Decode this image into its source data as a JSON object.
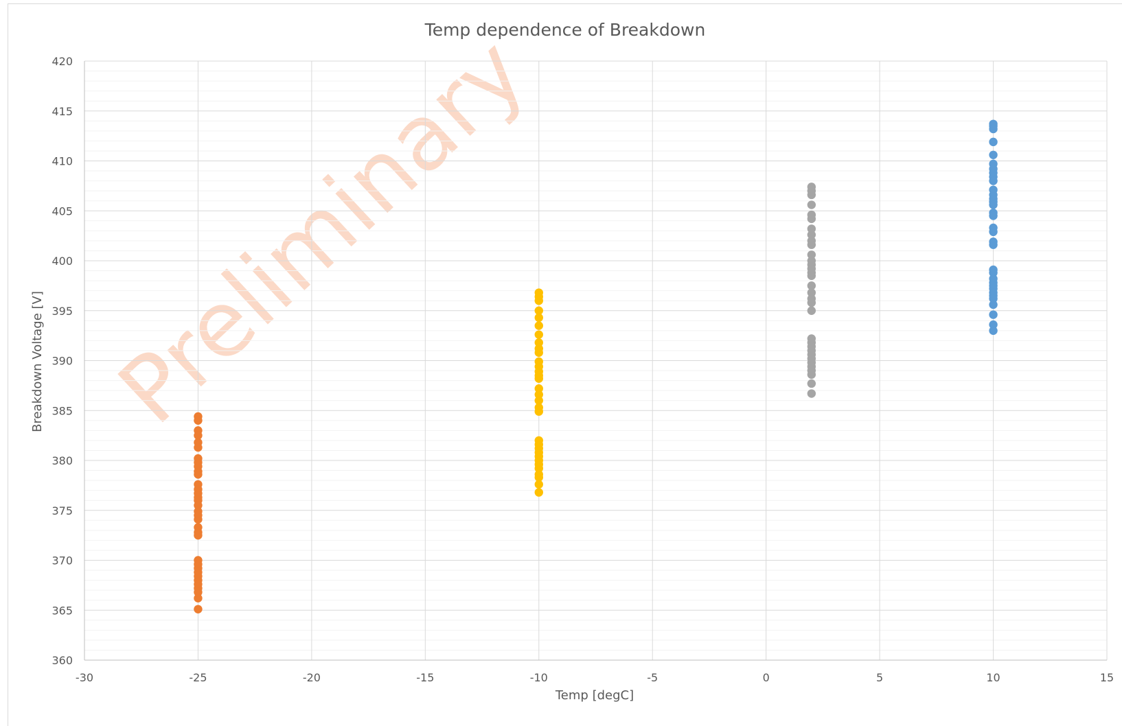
{
  "chart_data": {
    "type": "scatter",
    "title": "Temp dependence  of Breakdown",
    "xlabel": "Temp [degC]",
    "ylabel": "Breakdown Voltage [V]",
    "xlim": [
      -30,
      15
    ],
    "ylim": [
      360,
      420
    ],
    "x_ticks": [
      -30,
      -25,
      -20,
      -15,
      -10,
      -5,
      0,
      5,
      10,
      15
    ],
    "y_ticks": [
      360,
      365,
      370,
      375,
      380,
      385,
      390,
      395,
      400,
      405,
      410,
      415,
      420
    ],
    "x_tick_labels": [
      "-30",
      "-25",
      "-20",
      "-15",
      "-10",
      "-5",
      "0",
      "5",
      "10",
      "15"
    ],
    "y_tick_labels": [
      "360",
      "365",
      "370",
      "375",
      "380",
      "385",
      "390",
      "395",
      "400",
      "405",
      "410",
      "415",
      "420"
    ],
    "grid": {
      "major": true,
      "minor_y": true
    },
    "legend": "none",
    "watermark": {
      "text": "Preliminary",
      "color": "#fbd9c7"
    },
    "series": [
      {
        "color": "#ed7d31",
        "x": -25,
        "y": [
          384.4,
          384.0,
          383.0,
          382.5,
          381.8,
          381.3,
          380.2,
          379.8,
          379.4,
          378.9,
          378.6,
          377.6,
          377.1,
          376.7,
          376.3,
          376.0,
          375.5,
          374.9,
          374.5,
          374.1,
          373.3,
          372.8,
          372.5,
          370.0,
          369.6,
          369.2,
          368.8,
          368.4,
          368.0,
          367.6,
          367.2,
          366.8,
          366.2,
          365.1
        ]
      },
      {
        "color": "#ffc000",
        "x": -10,
        "y": [
          396.8,
          396.4,
          396.0,
          395.0,
          394.3,
          393.5,
          392.6,
          391.8,
          391.2,
          390.8,
          389.9,
          389.4,
          388.9,
          388.5,
          388.2,
          387.2,
          386.6,
          386.0,
          385.3,
          384.9,
          382.0,
          381.6,
          381.2,
          380.8,
          380.4,
          380.0,
          379.6,
          379.2,
          378.6,
          378.3,
          377.6,
          376.8
        ]
      },
      {
        "color": "#a5a5a5",
        "x": 2,
        "y": [
          407.4,
          407.0,
          406.6,
          405.6,
          404.6,
          404.2,
          403.2,
          402.6,
          402.0,
          401.6,
          400.6,
          400.0,
          399.6,
          399.2,
          398.8,
          398.5,
          397.5,
          396.8,
          396.2,
          395.8,
          395.0,
          392.2,
          391.8,
          391.4,
          391.0,
          390.6,
          390.2,
          389.8,
          389.4,
          389.0,
          388.6,
          387.7,
          386.7
        ]
      },
      {
        "color": "#5b9bd5",
        "x": 10,
        "y": [
          413.7,
          413.5,
          413.2,
          411.9,
          410.6,
          409.7,
          409.2,
          408.8,
          408.4,
          408.0,
          407.1,
          406.6,
          406.2,
          405.9,
          405.6,
          404.8,
          404.5,
          403.3,
          402.9,
          401.9,
          401.6,
          399.1,
          398.8,
          398.2,
          397.8,
          397.5,
          397.2,
          396.8,
          396.5,
          396.2,
          395.6,
          394.6,
          393.6,
          393.0
        ]
      }
    ]
  }
}
